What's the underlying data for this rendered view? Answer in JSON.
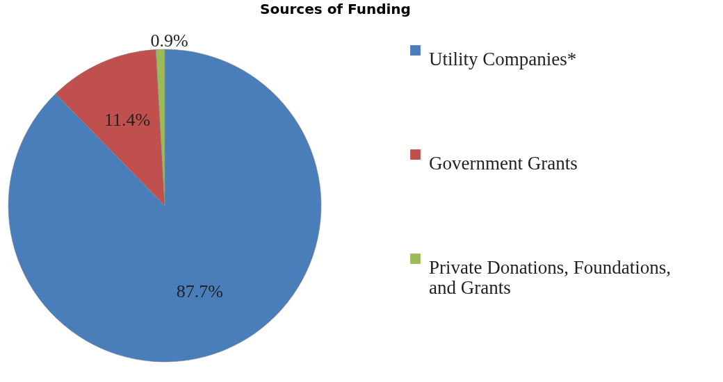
{
  "chart_data": {
    "type": "pie",
    "title": "Sources of Funding",
    "categories": [
      "Utility Companies*",
      "Government Grants",
      "Private Donations, Foundations, and Grants"
    ],
    "values": [
      87.7,
      11.4,
      0.9
    ],
    "colors": [
      "#4a7ebb",
      "#c0504d",
      "#9bbb59"
    ],
    "value_labels": [
      "87.7%",
      "11.4%",
      "0.9%"
    ],
    "legend": "right"
  }
}
